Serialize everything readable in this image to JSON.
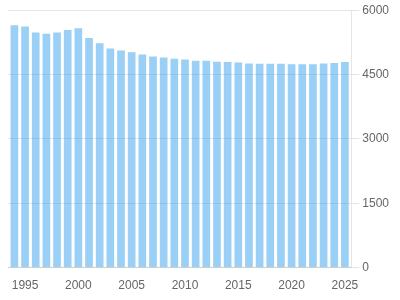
{
  "chart_data": {
    "type": "bar",
    "x": [
      1994,
      1995,
      1996,
      1997,
      1998,
      1999,
      2000,
      2001,
      2002,
      2003,
      2004,
      2005,
      2006,
      2007,
      2008,
      2009,
      2010,
      2011,
      2012,
      2013,
      2014,
      2015,
      2016,
      2017,
      2018,
      2019,
      2020,
      2021,
      2022,
      2023,
      2024,
      2025
    ],
    "values": [
      5650,
      5620,
      5480,
      5450,
      5480,
      5540,
      5580,
      5350,
      5230,
      5110,
      5060,
      5020,
      4970,
      4920,
      4900,
      4870,
      4850,
      4820,
      4820,
      4800,
      4790,
      4780,
      4760,
      4750,
      4750,
      4750,
      4740,
      4740,
      4740,
      4760,
      4770,
      4790
    ],
    "xlim": [
      1993.4,
      2025.6
    ],
    "xticks": [
      1995,
      2000,
      2005,
      2010,
      2015,
      2020,
      2025
    ],
    "ylim": [
      0,
      6000
    ],
    "yticks": [
      0,
      1500,
      3000,
      4500,
      6000
    ],
    "grid": true
  }
}
